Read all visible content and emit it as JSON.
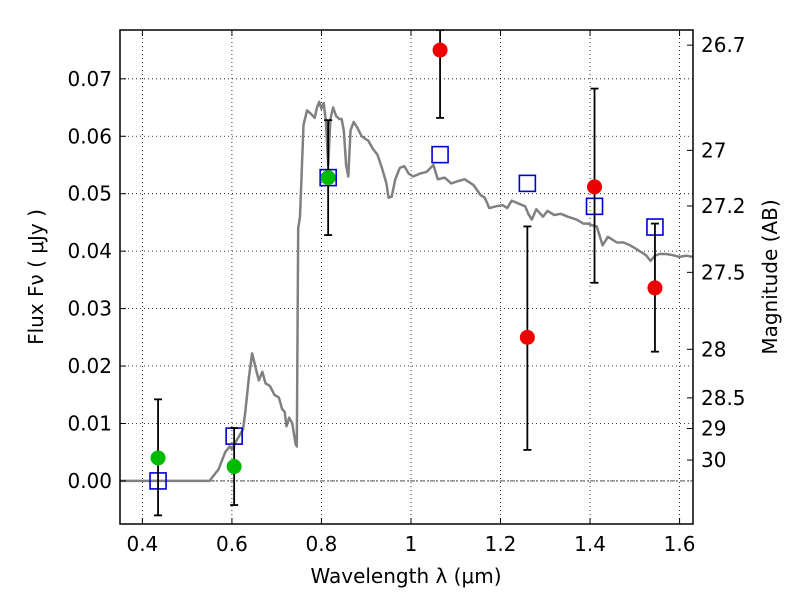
{
  "chart_data": {
    "type": "scatter",
    "title": "",
    "xlabel": "Wavelength  λ (μm)",
    "ylabel": "Flux  Fν  ( μJy )",
    "y2label": "Magnitude (AB)",
    "xlim": [
      0.35,
      1.63
    ],
    "ylim": [
      -0.0075,
      0.0785
    ],
    "grid": true,
    "xticks": [
      {
        "value": 0.4,
        "label": "0.4"
      },
      {
        "value": 0.6,
        "label": "0.6"
      },
      {
        "value": 0.8,
        "label": "0.8"
      },
      {
        "value": 1.0,
        "label": "1"
      },
      {
        "value": 1.2,
        "label": "1.2"
      },
      {
        "value": 1.4,
        "label": "1.4"
      },
      {
        "value": 1.6,
        "label": "1.6"
      }
    ],
    "yticks": [
      {
        "value": 0.0,
        "label": "0.00"
      },
      {
        "value": 0.01,
        "label": "0.01"
      },
      {
        "value": 0.02,
        "label": "0.02"
      },
      {
        "value": 0.03,
        "label": "0.03"
      },
      {
        "value": 0.04,
        "label": "0.04"
      },
      {
        "value": 0.05,
        "label": "0.05"
      },
      {
        "value": 0.06,
        "label": "0.06"
      },
      {
        "value": 0.07,
        "label": "0.07"
      }
    ],
    "y2ticks": [
      {
        "value": 26.7,
        "label": "26.7"
      },
      {
        "value": 27,
        "label": "27"
      },
      {
        "value": 27.2,
        "label": "27.2"
      },
      {
        "value": 27.5,
        "label": "27.5"
      },
      {
        "value": 28,
        "label": "28"
      },
      {
        "value": 28.5,
        "label": "28.5"
      },
      {
        "value": 29,
        "label": "29"
      },
      {
        "value": 30,
        "label": "30"
      }
    ],
    "series": [
      {
        "kind": "line",
        "color": "#808080",
        "points": [
          [
            0.35,
            0.0
          ],
          [
            0.55,
            0.0
          ],
          [
            0.57,
            0.002
          ],
          [
            0.585,
            0.005
          ],
          [
            0.595,
            0.006
          ],
          [
            0.6,
            0.0055
          ],
          [
            0.61,
            0.007
          ],
          [
            0.625,
            0.009
          ],
          [
            0.63,
            0.012
          ],
          [
            0.638,
            0.018
          ],
          [
            0.645,
            0.0222
          ],
          [
            0.652,
            0.02
          ],
          [
            0.66,
            0.0175
          ],
          [
            0.668,
            0.019
          ],
          [
            0.675,
            0.017
          ],
          [
            0.685,
            0.0165
          ],
          [
            0.695,
            0.015
          ],
          [
            0.705,
            0.0145
          ],
          [
            0.712,
            0.0125
          ],
          [
            0.718,
            0.012
          ],
          [
            0.722,
            0.0095
          ],
          [
            0.728,
            0.011
          ],
          [
            0.735,
            0.01
          ],
          [
            0.742,
            0.0065
          ],
          [
            0.745,
            0.006
          ],
          [
            0.748,
            0.044
          ],
          [
            0.752,
            0.046
          ],
          [
            0.76,
            0.062
          ],
          [
            0.768,
            0.0645
          ],
          [
            0.778,
            0.0638
          ],
          [
            0.785,
            0.0632
          ],
          [
            0.79,
            0.065
          ],
          [
            0.795,
            0.066
          ],
          [
            0.8,
            0.0648
          ],
          [
            0.805,
            0.0658
          ],
          [
            0.81,
            0.0625
          ],
          [
            0.815,
            0.055
          ],
          [
            0.82,
            0.063
          ],
          [
            0.826,
            0.065
          ],
          [
            0.833,
            0.0635
          ],
          [
            0.84,
            0.063
          ],
          [
            0.845,
            0.063
          ],
          [
            0.85,
            0.061
          ],
          [
            0.855,
            0.055
          ],
          [
            0.86,
            0.053
          ],
          [
            0.865,
            0.061
          ],
          [
            0.872,
            0.0625
          ],
          [
            0.88,
            0.0615
          ],
          [
            0.89,
            0.06
          ],
          [
            0.905,
            0.0592
          ],
          [
            0.915,
            0.0578
          ],
          [
            0.925,
            0.0568
          ],
          [
            0.935,
            0.0545
          ],
          [
            0.945,
            0.0518
          ],
          [
            0.95,
            0.0493
          ],
          [
            0.957,
            0.0495
          ],
          [
            0.965,
            0.0525
          ],
          [
            0.975,
            0.0545
          ],
          [
            0.985,
            0.0548
          ],
          [
            0.995,
            0.0535
          ],
          [
            1.005,
            0.053
          ],
          [
            1.02,
            0.0535
          ],
          [
            1.035,
            0.0538
          ],
          [
            1.05,
            0.055
          ],
          [
            1.06,
            0.0525
          ],
          [
            1.075,
            0.0528
          ],
          [
            1.09,
            0.0518
          ],
          [
            1.105,
            0.0522
          ],
          [
            1.12,
            0.0525
          ],
          [
            1.14,
            0.0515
          ],
          [
            1.155,
            0.0498
          ],
          [
            1.165,
            0.0493
          ],
          [
            1.175,
            0.0475
          ],
          [
            1.19,
            0.0478
          ],
          [
            1.205,
            0.048
          ],
          [
            1.215,
            0.0475
          ],
          [
            1.225,
            0.0488
          ],
          [
            1.24,
            0.0483
          ],
          [
            1.255,
            0.0478
          ],
          [
            1.262,
            0.0465
          ],
          [
            1.27,
            0.0455
          ],
          [
            1.28,
            0.0473
          ],
          [
            1.295,
            0.046
          ],
          [
            1.305,
            0.047
          ],
          [
            1.32,
            0.0463
          ],
          [
            1.335,
            0.0465
          ],
          [
            1.35,
            0.046
          ],
          [
            1.37,
            0.0455
          ],
          [
            1.385,
            0.0448
          ],
          [
            1.395,
            0.0448
          ],
          [
            1.405,
            0.0445
          ],
          [
            1.415,
            0.0443
          ],
          [
            1.428,
            0.041
          ],
          [
            1.44,
            0.0425
          ],
          [
            1.46,
            0.0415
          ],
          [
            1.475,
            0.0415
          ],
          [
            1.49,
            0.041
          ],
          [
            1.505,
            0.0403
          ],
          [
            1.515,
            0.0398
          ],
          [
            1.525,
            0.0393
          ],
          [
            1.535,
            0.0383
          ],
          [
            1.545,
            0.0392
          ],
          [
            1.555,
            0.0395
          ],
          [
            1.57,
            0.0395
          ],
          [
            1.585,
            0.0393
          ],
          [
            1.6,
            0.039
          ],
          [
            1.615,
            0.0392
          ],
          [
            1.63,
            0.039
          ]
        ]
      },
      {
        "kind": "points",
        "marker": "square",
        "color": "#0000cc",
        "points": [
          [
            0.435,
            0.0
          ],
          [
            0.605,
            0.0078
          ],
          [
            0.815,
            0.0528
          ],
          [
            1.065,
            0.0568
          ],
          [
            1.26,
            0.0518
          ],
          [
            1.41,
            0.0478
          ],
          [
            1.545,
            0.0442
          ]
        ]
      },
      {
        "kind": "points",
        "marker": "circle",
        "color": "#00bb00",
        "points": [
          {
            "x": 0.435,
            "y": 0.004,
            "ylo": -0.006,
            "yhi": 0.0142
          },
          {
            "x": 0.605,
            "y": 0.0025,
            "ylo": -0.0042,
            "yhi": 0.0092
          },
          {
            "x": 0.815,
            "y": 0.0528,
            "ylo": 0.0428,
            "yhi": 0.0628
          }
        ]
      },
      {
        "kind": "points",
        "marker": "circle",
        "color": "#ee0000",
        "points": [
          {
            "x": 1.065,
            "y": 0.075,
            "ylo": 0.0632,
            "yhi": 0.0785
          },
          {
            "x": 1.26,
            "y": 0.025,
            "ylo": 0.0054,
            "yhi": 0.0443
          },
          {
            "x": 1.41,
            "y": 0.0512,
            "ylo": 0.0345,
            "yhi": 0.0683
          },
          {
            "x": 1.545,
            "y": 0.0336,
            "ylo": 0.0225,
            "yhi": 0.0448
          }
        ]
      }
    ]
  }
}
